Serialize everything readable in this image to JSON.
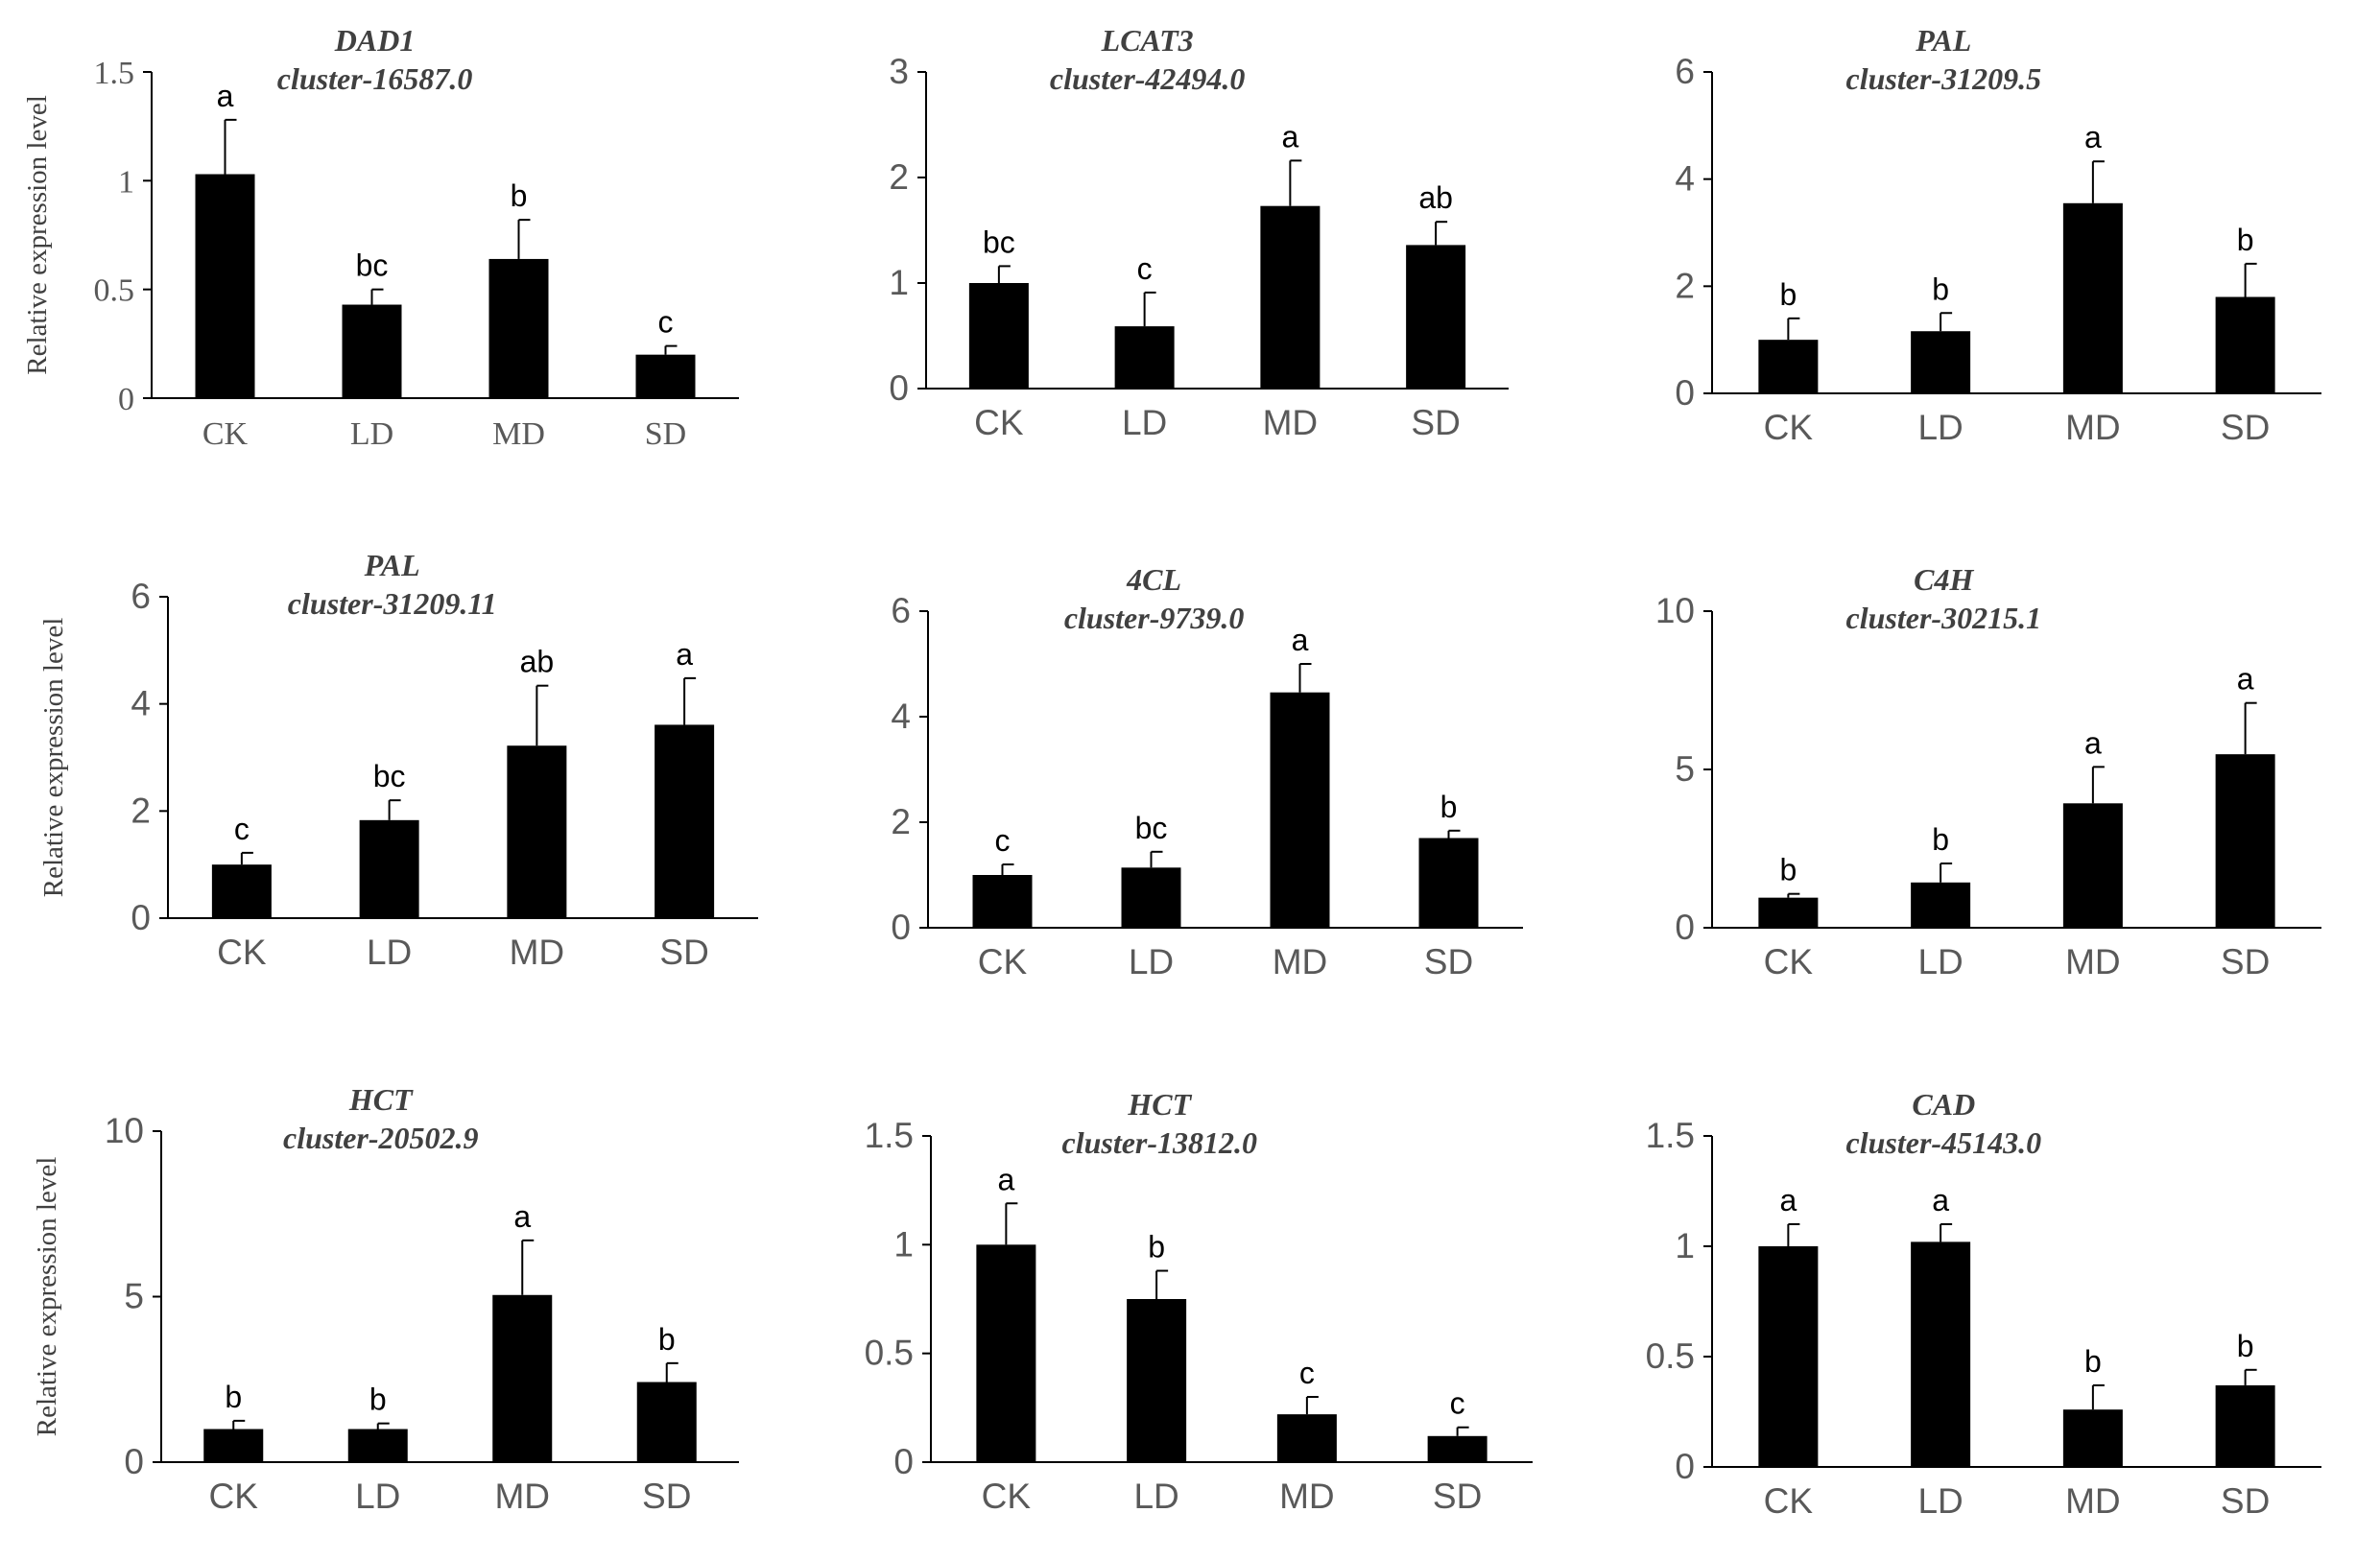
{
  "figure": {
    "chart_data": [
      {
        "type": "bar",
        "title": "DAD1",
        "subtitle": "cluster-16587.0",
        "ylabel": "Relative expression level",
        "categories": [
          "CK",
          "LD",
          "MD",
          "SD"
        ],
        "values": [
          1.03,
          0.43,
          0.64,
          0.2
        ],
        "errors": [
          0.25,
          0.07,
          0.18,
          0.04
        ],
        "significance": [
          "a",
          "bc",
          "b",
          "c"
        ],
        "ylim": [
          0,
          1.5
        ],
        "yticks": [
          "0",
          "0.5",
          "1",
          "1.5"
        ],
        "grid": false
      },
      {
        "type": "bar",
        "title": "LCAT3",
        "subtitle": "cluster-42494.0",
        "ylabel": "",
        "categories": [
          "CK",
          "LD",
          "MD",
          "SD"
        ],
        "values": [
          1.0,
          0.59,
          1.73,
          1.36
        ],
        "errors": [
          0.16,
          0.32,
          0.43,
          0.22
        ],
        "significance": [
          "bc",
          "c",
          "a",
          "ab"
        ],
        "ylim": [
          0,
          3
        ],
        "yticks": [
          "0",
          "1",
          "2",
          "3"
        ],
        "grid": false
      },
      {
        "type": "bar",
        "title": "PAL",
        "subtitle": "cluster-31209.5",
        "ylabel": "",
        "categories": [
          "CK",
          "LD",
          "MD",
          "SD"
        ],
        "values": [
          1.0,
          1.16,
          3.55,
          1.8
        ],
        "errors": [
          0.4,
          0.34,
          0.78,
          0.62
        ],
        "significance": [
          "b",
          "b",
          "a",
          "b"
        ],
        "ylim": [
          0,
          6
        ],
        "yticks": [
          "0",
          "2",
          "4",
          "6"
        ],
        "grid": false
      },
      {
        "type": "bar",
        "title": "PAL",
        "subtitle": "cluster-31209.11",
        "ylabel": "Relative expression level",
        "categories": [
          "CK",
          "LD",
          "MD",
          "SD"
        ],
        "values": [
          1.0,
          1.83,
          3.22,
          3.61
        ],
        "errors": [
          0.22,
          0.37,
          1.12,
          0.87
        ],
        "significance": [
          "c",
          "bc",
          "ab",
          "a"
        ],
        "ylim": [
          0,
          6
        ],
        "yticks": [
          "0",
          "2",
          "4",
          "6"
        ],
        "grid": false
      },
      {
        "type": "bar",
        "title": "4CL",
        "subtitle": "cluster-9739.0",
        "ylabel": "",
        "categories": [
          "CK",
          "LD",
          "MD",
          "SD"
        ],
        "values": [
          1.0,
          1.14,
          4.46,
          1.7
        ],
        "errors": [
          0.2,
          0.3,
          0.54,
          0.14
        ],
        "significance": [
          "c",
          "bc",
          "a",
          "b"
        ],
        "ylim": [
          0,
          6
        ],
        "yticks": [
          "0",
          "2",
          "4",
          "6"
        ],
        "grid": false
      },
      {
        "type": "bar",
        "title": "C4H",
        "subtitle": "cluster-30215.1",
        "ylabel": "",
        "categories": [
          "CK",
          "LD",
          "MD",
          "SD"
        ],
        "values": [
          0.95,
          1.43,
          3.93,
          5.48
        ],
        "errors": [
          0.12,
          0.6,
          1.15,
          1.62
        ],
        "significance": [
          "b",
          "b",
          "a",
          "a"
        ],
        "ylim": [
          0,
          10
        ],
        "yticks": [
          "0",
          "5",
          "10"
        ],
        "grid": false
      },
      {
        "type": "bar",
        "title": "HCT",
        "subtitle": "cluster-20502.9",
        "ylabel": "Relative expression level",
        "categories": [
          "CK",
          "LD",
          "MD",
          "SD"
        ],
        "values": [
          1.0,
          1.0,
          5.05,
          2.42
        ],
        "errors": [
          0.25,
          0.17,
          1.65,
          0.57
        ],
        "significance": [
          "b",
          "b",
          "a",
          "b"
        ],
        "ylim": [
          0,
          10
        ],
        "yticks": [
          "0",
          "5",
          "10"
        ],
        "grid": false
      },
      {
        "type": "bar",
        "title": "HCT",
        "subtitle": "cluster-13812.0",
        "ylabel": "",
        "categories": [
          "CK",
          "LD",
          "MD",
          "SD"
        ],
        "values": [
          1.0,
          0.75,
          0.22,
          0.12
        ],
        "errors": [
          0.19,
          0.13,
          0.08,
          0.04
        ],
        "significance": [
          "a",
          "b",
          "c",
          "c"
        ],
        "ylim": [
          0,
          1.5
        ],
        "yticks": [
          "0",
          "0.5",
          "1",
          "1.5"
        ],
        "grid": false
      },
      {
        "type": "bar",
        "title": "CAD",
        "subtitle": "cluster-45143.0",
        "ylabel": "",
        "categories": [
          "CK",
          "LD",
          "MD",
          "SD"
        ],
        "values": [
          1.0,
          1.02,
          0.26,
          0.37
        ],
        "errors": [
          0.1,
          0.08,
          0.11,
          0.07
        ],
        "significance": [
          "a",
          "a",
          "b",
          "b"
        ],
        "ylim": [
          0,
          1.5
        ],
        "yticks": [
          "0",
          "0.5",
          "1",
          "1.5"
        ],
        "grid": false
      }
    ]
  }
}
